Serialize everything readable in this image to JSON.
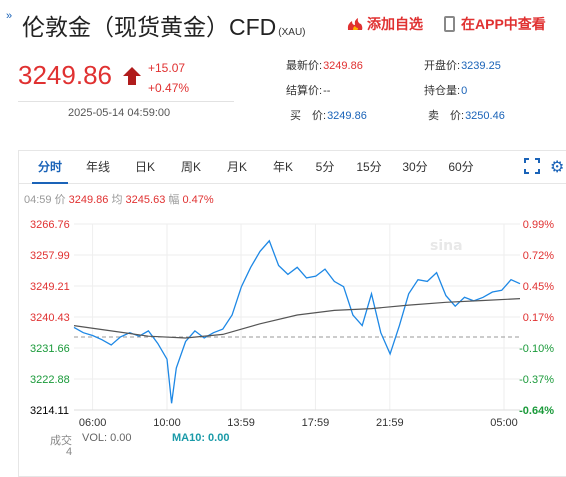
{
  "header": {
    "title": "伦敦金（现货黄金）CFD",
    "title_suffix": "(XAU)",
    "add_favorite": "添加自选",
    "view_in_app": "在APP中查看"
  },
  "quote": {
    "price": "3249.86",
    "change": "+15.07",
    "change_pct": "+0.47%",
    "timestamp": "2025-05-14 04:59:00"
  },
  "stats": {
    "latest_label": "最新价:",
    "latest_value": "3249.86",
    "open_label": "开盘价:",
    "open_value": "3239.25",
    "settle_label": "结算价:",
    "settle_value": "--",
    "position_label": "持仓量:",
    "position_value": "0",
    "buy_label": "买　价:",
    "buy_value": "3249.86",
    "sell_label": "卖　价:",
    "sell_value": "3250.46"
  },
  "tabs": [
    "分时",
    "年线",
    "日K",
    "周K",
    "月K",
    "年K",
    "5分",
    "15分",
    "30分",
    "60分"
  ],
  "active_tab": 0,
  "info_line": {
    "time": "04:59",
    "price_label": "价",
    "price": "3249.86",
    "avg_label": "均",
    "avg": "3245.63",
    "amp_label": "幅",
    "amp": "0.47%"
  },
  "volume_bar": {
    "label": "成交",
    "label2": "4",
    "vol": "VOL: 0.00",
    "ma10": "MA10: 0.00"
  },
  "colors": {
    "up": "#e03131",
    "down": "#1a9a3a",
    "price_line": "#1e88e5",
    "avg_line": "#555555",
    "accent": "#1a63b8"
  },
  "chart_data": {
    "type": "line",
    "title": "",
    "y_ticks_left": [
      "3266.76",
      "3257.99",
      "3249.21",
      "3240.43",
      "3231.66",
      "3222.88",
      "3214.11"
    ],
    "y_ticks_right": [
      "0.99%",
      "0.72%",
      "0.45%",
      "0.17%",
      "-0.10%",
      "-0.37%",
      "-0.64%"
    ],
    "x_ticks": [
      "06:00",
      "10:00",
      "13:59",
      "17:59",
      "21:59",
      "05:00"
    ],
    "ylim": [
      3214.11,
      3266.76
    ],
    "prev_close": 3234.79,
    "series": [
      {
        "x": [
          "05:00",
          "05:30",
          "06:00",
          "06:30",
          "07:00",
          "07:30",
          "08:00",
          "08:30",
          "09:00",
          "09:30",
          "10:00",
          "10:15",
          "10:30",
          "11:00",
          "11:30",
          "12:00",
          "12:30",
          "13:00",
          "13:30",
          "14:00",
          "14:30",
          "15:00",
          "15:30",
          "16:00",
          "16:30",
          "17:00",
          "17:30",
          "18:00",
          "18:30",
          "19:00",
          "19:30",
          "20:00",
          "20:30",
          "21:00",
          "21:30",
          "22:00",
          "22:30",
          "23:00",
          "23:30",
          "00:00",
          "00:30",
          "01:00",
          "01:30",
          "02:00",
          "02:30",
          "03:00",
          "03:30",
          "04:00",
          "04:30",
          "04:59"
        ],
        "values": [
          3237.5,
          3236.0,
          3235.2,
          3234.0,
          3232.5,
          3234.8,
          3236.0,
          3235.0,
          3236.5,
          3233.0,
          3228.5,
          3216.0,
          3226.0,
          3233.5,
          3236.5,
          3234.5,
          3236.0,
          3237.0,
          3241.0,
          3249.0,
          3254.5,
          3259.0,
          3262.0,
          3255.0,
          3252.5,
          3254.5,
          3251.5,
          3252.0,
          3254.0,
          3250.5,
          3249.0,
          3241.0,
          3238.0,
          3247.0,
          3236.0,
          3230.0,
          3238.0,
          3247.0,
          3251.0,
          3250.5,
          3253.0,
          3246.5,
          3243.5,
          3246.0,
          3245.0,
          3246.0,
          3247.5,
          3248.0,
          3251.0,
          3249.86
        ]
      },
      {
        "x": [
          "05:00",
          "07:00",
          "09:00",
          "11:00",
          "13:00",
          "15:00",
          "17:00",
          "19:00",
          "21:00",
          "23:00",
          "01:00",
          "03:00",
          "04:59"
        ],
        "values": [
          3238.0,
          3236.5,
          3235.0,
          3234.5,
          3235.5,
          3238.5,
          3241.0,
          3242.3,
          3242.8,
          3243.8,
          3244.6,
          3245.1,
          3245.63
        ]
      }
    ]
  }
}
